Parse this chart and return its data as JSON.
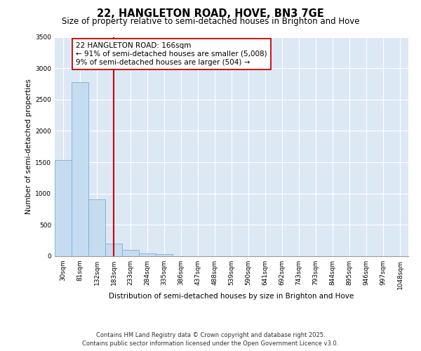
{
  "title": "22, HANGLETON ROAD, HOVE, BN3 7GE",
  "subtitle": "Size of property relative to semi-detached houses in Brighton and Hove",
  "xlabel": "Distribution of semi-detached houses by size in Brighton and Hove",
  "ylabel": "Number of semi-detached properties",
  "categories": [
    "30sqm",
    "81sqm",
    "132sqm",
    "183sqm",
    "233sqm",
    "284sqm",
    "335sqm",
    "386sqm",
    "437sqm",
    "488sqm",
    "539sqm",
    "590sqm",
    "641sqm",
    "692sqm",
    "743sqm",
    "793sqm",
    "844sqm",
    "895sqm",
    "946sqm",
    "997sqm",
    "1048sqm"
  ],
  "values": [
    1530,
    2780,
    910,
    200,
    100,
    45,
    30,
    0,
    0,
    0,
    0,
    0,
    0,
    0,
    0,
    0,
    0,
    0,
    0,
    0,
    0
  ],
  "bar_color": "#C5DBF0",
  "bar_edge_color": "#7AAFD4",
  "vline_x": 3.0,
  "vline_color": "#CC0000",
  "annotation_text": "22 HANGLETON ROAD: 166sqm\n← 91% of semi-detached houses are smaller (5,008)\n9% of semi-detached houses are larger (504) →",
  "annotation_box_color": "white",
  "annotation_box_edge_color": "#CC0000",
  "ylim": [
    0,
    3500
  ],
  "background_color": "#DDE8F5",
  "grid_color": "#FFFFFF",
  "footer_line1": "Contains HM Land Registry data © Crown copyright and database right 2025.",
  "footer_line2": "Contains public sector information licensed under the Open Government Licence v3.0.",
  "title_fontsize": 10.5,
  "subtitle_fontsize": 8.5,
  "axis_label_fontsize": 7.5,
  "tick_fontsize": 6.5,
  "annotation_fontsize": 7.5,
  "footer_fontsize": 6.0
}
